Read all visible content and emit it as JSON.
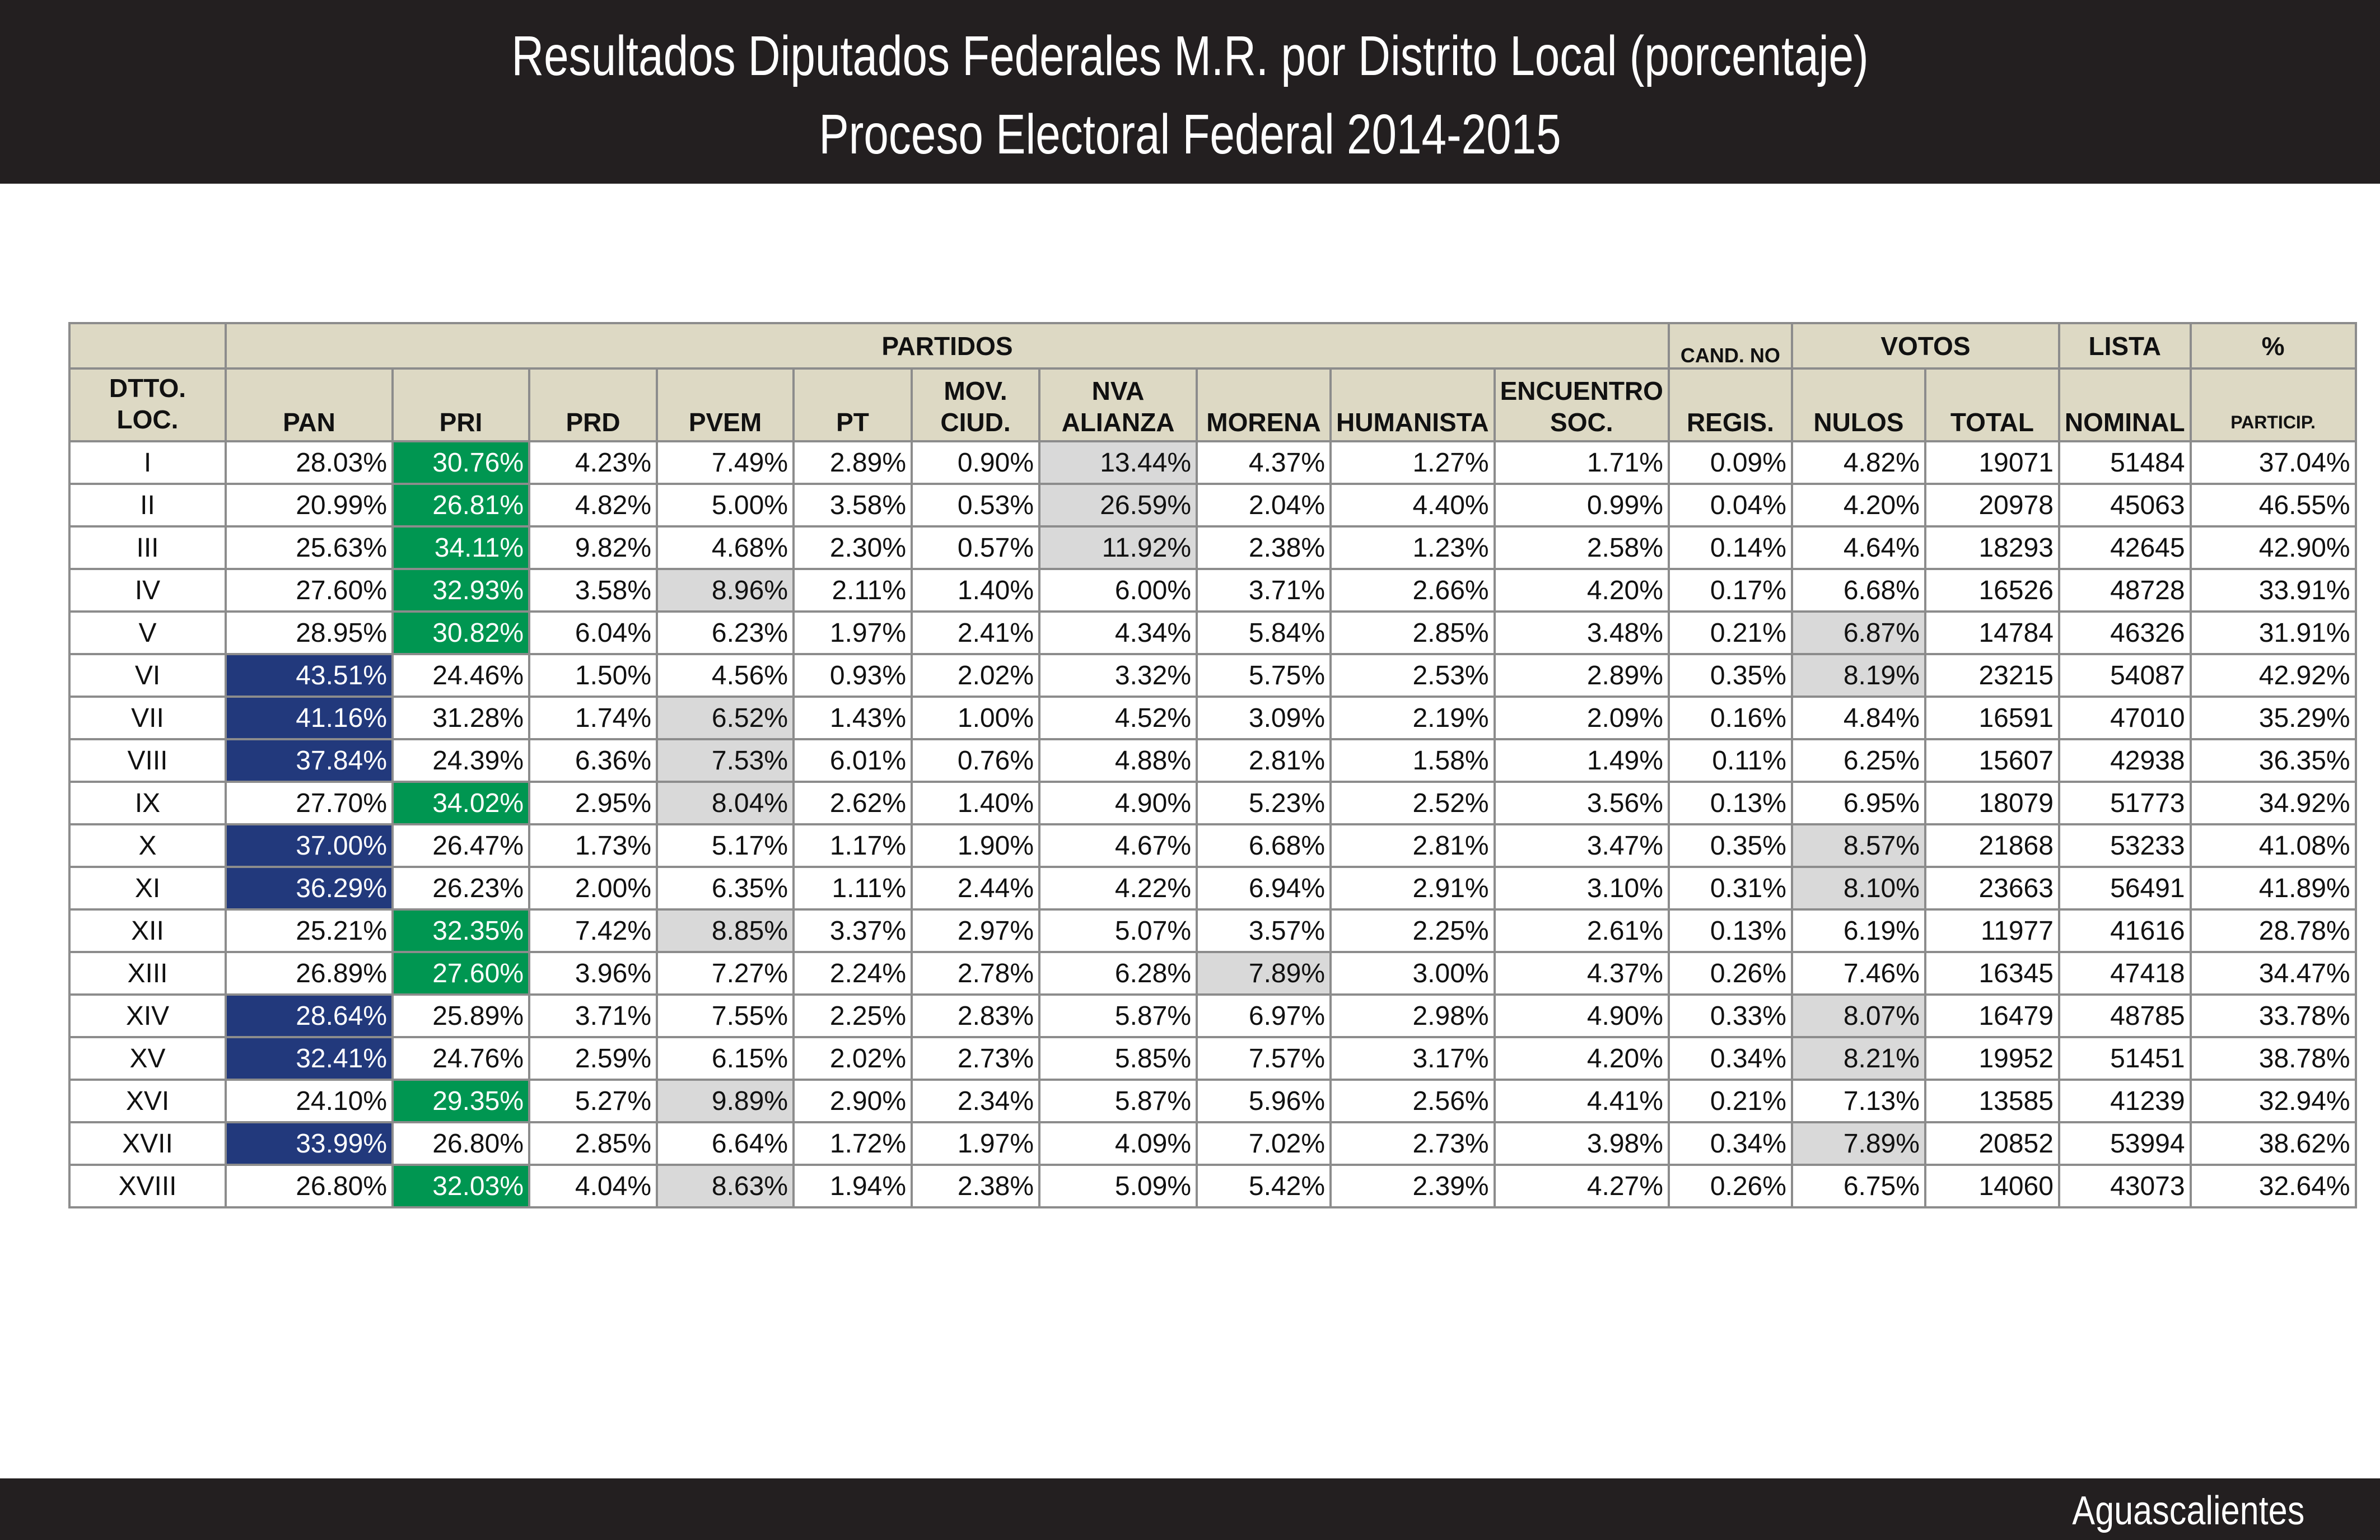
{
  "header": {
    "title_line1": "Resultados Diputados Federales M.R. por Distrito Local (porcentaje)",
    "title_line2": "Proceso Electoral Federal 2014-2015"
  },
  "footer": {
    "state": "Aguascalientes"
  },
  "colors": {
    "pan": "#22397c",
    "pri": "#009651",
    "second": "#d9d9d9",
    "header_bg": "#ddd9c4"
  },
  "table": {
    "group_headers": {
      "partidos": "PARTIDOS",
      "cand_no": "CAND. NO",
      "votos": "VOTOS",
      "lista": "LISTA",
      "pct": "%"
    },
    "columns": [
      "DTTO. LOC.",
      "PAN",
      "PRI",
      "PRD",
      "PVEM",
      "PT",
      "MOV. CIUD.",
      "NVA ALIANZA",
      "MORENA",
      "HUMANISTA",
      "ENCUENTRO SOC.",
      "REGIS.",
      "NULOS",
      "TOTAL",
      "NOMINAL",
      "PARTICIP."
    ],
    "rows": [
      {
        "cells": [
          "I",
          "28.03%",
          "30.76%",
          "4.23%",
          "7.49%",
          "2.89%",
          "0.90%",
          "13.44%",
          "4.37%",
          "1.27%",
          "1.71%",
          "0.09%",
          "4.82%",
          "19071",
          "51484",
          "37.04%"
        ],
        "winner": "PRI",
        "win": 2,
        "second": 7
      },
      {
        "cells": [
          "II",
          "20.99%",
          "26.81%",
          "4.82%",
          "5.00%",
          "3.58%",
          "0.53%",
          "26.59%",
          "2.04%",
          "4.40%",
          "0.99%",
          "0.04%",
          "4.20%",
          "20978",
          "45063",
          "46.55%"
        ],
        "winner": "PRI",
        "win": 2,
        "second": 7
      },
      {
        "cells": [
          "III",
          "25.63%",
          "34.11%",
          "9.82%",
          "4.68%",
          "2.30%",
          "0.57%",
          "11.92%",
          "2.38%",
          "1.23%",
          "2.58%",
          "0.14%",
          "4.64%",
          "18293",
          "42645",
          "42.90%"
        ],
        "winner": "PRI",
        "win": 2,
        "second": 7
      },
      {
        "cells": [
          "IV",
          "27.60%",
          "32.93%",
          "3.58%",
          "8.96%",
          "2.11%",
          "1.40%",
          "6.00%",
          "3.71%",
          "2.66%",
          "4.20%",
          "0.17%",
          "6.68%",
          "16526",
          "48728",
          "33.91%"
        ],
        "winner": "PRI",
        "win": 2,
        "second": 4
      },
      {
        "cells": [
          "V",
          "28.95%",
          "30.82%",
          "6.04%",
          "6.23%",
          "1.97%",
          "2.41%",
          "4.34%",
          "5.84%",
          "2.85%",
          "3.48%",
          "0.21%",
          "6.87%",
          "14784",
          "46326",
          "31.91%"
        ],
        "winner": "PRI",
        "win": 2,
        "second": 12
      },
      {
        "cells": [
          "VI",
          "43.51%",
          "24.46%",
          "1.50%",
          "4.56%",
          "0.93%",
          "2.02%",
          "3.32%",
          "5.75%",
          "2.53%",
          "2.89%",
          "0.35%",
          "8.19%",
          "23215",
          "54087",
          "42.92%"
        ],
        "winner": "PAN",
        "win": 1,
        "second": 12
      },
      {
        "cells": [
          "VII",
          "41.16%",
          "31.28%",
          "1.74%",
          "6.52%",
          "1.43%",
          "1.00%",
          "4.52%",
          "3.09%",
          "2.19%",
          "2.09%",
          "0.16%",
          "4.84%",
          "16591",
          "47010",
          "35.29%"
        ],
        "winner": "PAN",
        "win": 1,
        "second": 4
      },
      {
        "cells": [
          "VIII",
          "37.84%",
          "24.39%",
          "6.36%",
          "7.53%",
          "6.01%",
          "0.76%",
          "4.88%",
          "2.81%",
          "1.58%",
          "1.49%",
          "0.11%",
          "6.25%",
          "15607",
          "42938",
          "36.35%"
        ],
        "winner": "PAN",
        "win": 1,
        "second": 4
      },
      {
        "cells": [
          "IX",
          "27.70%",
          "34.02%",
          "2.95%",
          "8.04%",
          "2.62%",
          "1.40%",
          "4.90%",
          "5.23%",
          "2.52%",
          "3.56%",
          "0.13%",
          "6.95%",
          "18079",
          "51773",
          "34.92%"
        ],
        "winner": "PRI",
        "win": 2,
        "second": 4
      },
      {
        "cells": [
          "X",
          "37.00%",
          "26.47%",
          "1.73%",
          "5.17%",
          "1.17%",
          "1.90%",
          "4.67%",
          "6.68%",
          "2.81%",
          "3.47%",
          "0.35%",
          "8.57%",
          "21868",
          "53233",
          "41.08%"
        ],
        "winner": "PAN",
        "win": 1,
        "second": 12
      },
      {
        "cells": [
          "XI",
          "36.29%",
          "26.23%",
          "2.00%",
          "6.35%",
          "1.11%",
          "2.44%",
          "4.22%",
          "6.94%",
          "2.91%",
          "3.10%",
          "0.31%",
          "8.10%",
          "23663",
          "56491",
          "41.89%"
        ],
        "winner": "PAN",
        "win": 1,
        "second": 12
      },
      {
        "cells": [
          "XII",
          "25.21%",
          "32.35%",
          "7.42%",
          "8.85%",
          "3.37%",
          "2.97%",
          "5.07%",
          "3.57%",
          "2.25%",
          "2.61%",
          "0.13%",
          "6.19%",
          "11977",
          "41616",
          "28.78%"
        ],
        "winner": "PRI",
        "win": 2,
        "second": 4
      },
      {
        "cells": [
          "XIII",
          "26.89%",
          "27.60%",
          "3.96%",
          "7.27%",
          "2.24%",
          "2.78%",
          "6.28%",
          "7.89%",
          "3.00%",
          "4.37%",
          "0.26%",
          "7.46%",
          "16345",
          "47418",
          "34.47%"
        ],
        "winner": "PRI",
        "win": 2,
        "second": 8
      },
      {
        "cells": [
          "XIV",
          "28.64%",
          "25.89%",
          "3.71%",
          "7.55%",
          "2.25%",
          "2.83%",
          "5.87%",
          "6.97%",
          "2.98%",
          "4.90%",
          "0.33%",
          "8.07%",
          "16479",
          "48785",
          "33.78%"
        ],
        "winner": "PAN",
        "win": 1,
        "second": 12
      },
      {
        "cells": [
          "XV",
          "32.41%",
          "24.76%",
          "2.59%",
          "6.15%",
          "2.02%",
          "2.73%",
          "5.85%",
          "7.57%",
          "3.17%",
          "4.20%",
          "0.34%",
          "8.21%",
          "19952",
          "51451",
          "38.78%"
        ],
        "winner": "PAN",
        "win": 1,
        "second": 12
      },
      {
        "cells": [
          "XVI",
          "24.10%",
          "29.35%",
          "5.27%",
          "9.89%",
          "2.90%",
          "2.34%",
          "5.87%",
          "5.96%",
          "2.56%",
          "4.41%",
          "0.21%",
          "7.13%",
          "13585",
          "41239",
          "32.94%"
        ],
        "winner": "PRI",
        "win": 2,
        "second": 4
      },
      {
        "cells": [
          "XVII",
          "33.99%",
          "26.80%",
          "2.85%",
          "6.64%",
          "1.72%",
          "1.97%",
          "4.09%",
          "7.02%",
          "2.73%",
          "3.98%",
          "0.34%",
          "7.89%",
          "20852",
          "53994",
          "38.62%"
        ],
        "winner": "PAN",
        "win": 1,
        "second": 12
      },
      {
        "cells": [
          "XVIII",
          "26.80%",
          "32.03%",
          "4.04%",
          "8.63%",
          "1.94%",
          "2.38%",
          "5.09%",
          "5.42%",
          "2.39%",
          "4.27%",
          "0.26%",
          "6.75%",
          "14060",
          "43073",
          "32.64%"
        ],
        "winner": "PRI",
        "win": 2,
        "second": 4
      }
    ]
  }
}
